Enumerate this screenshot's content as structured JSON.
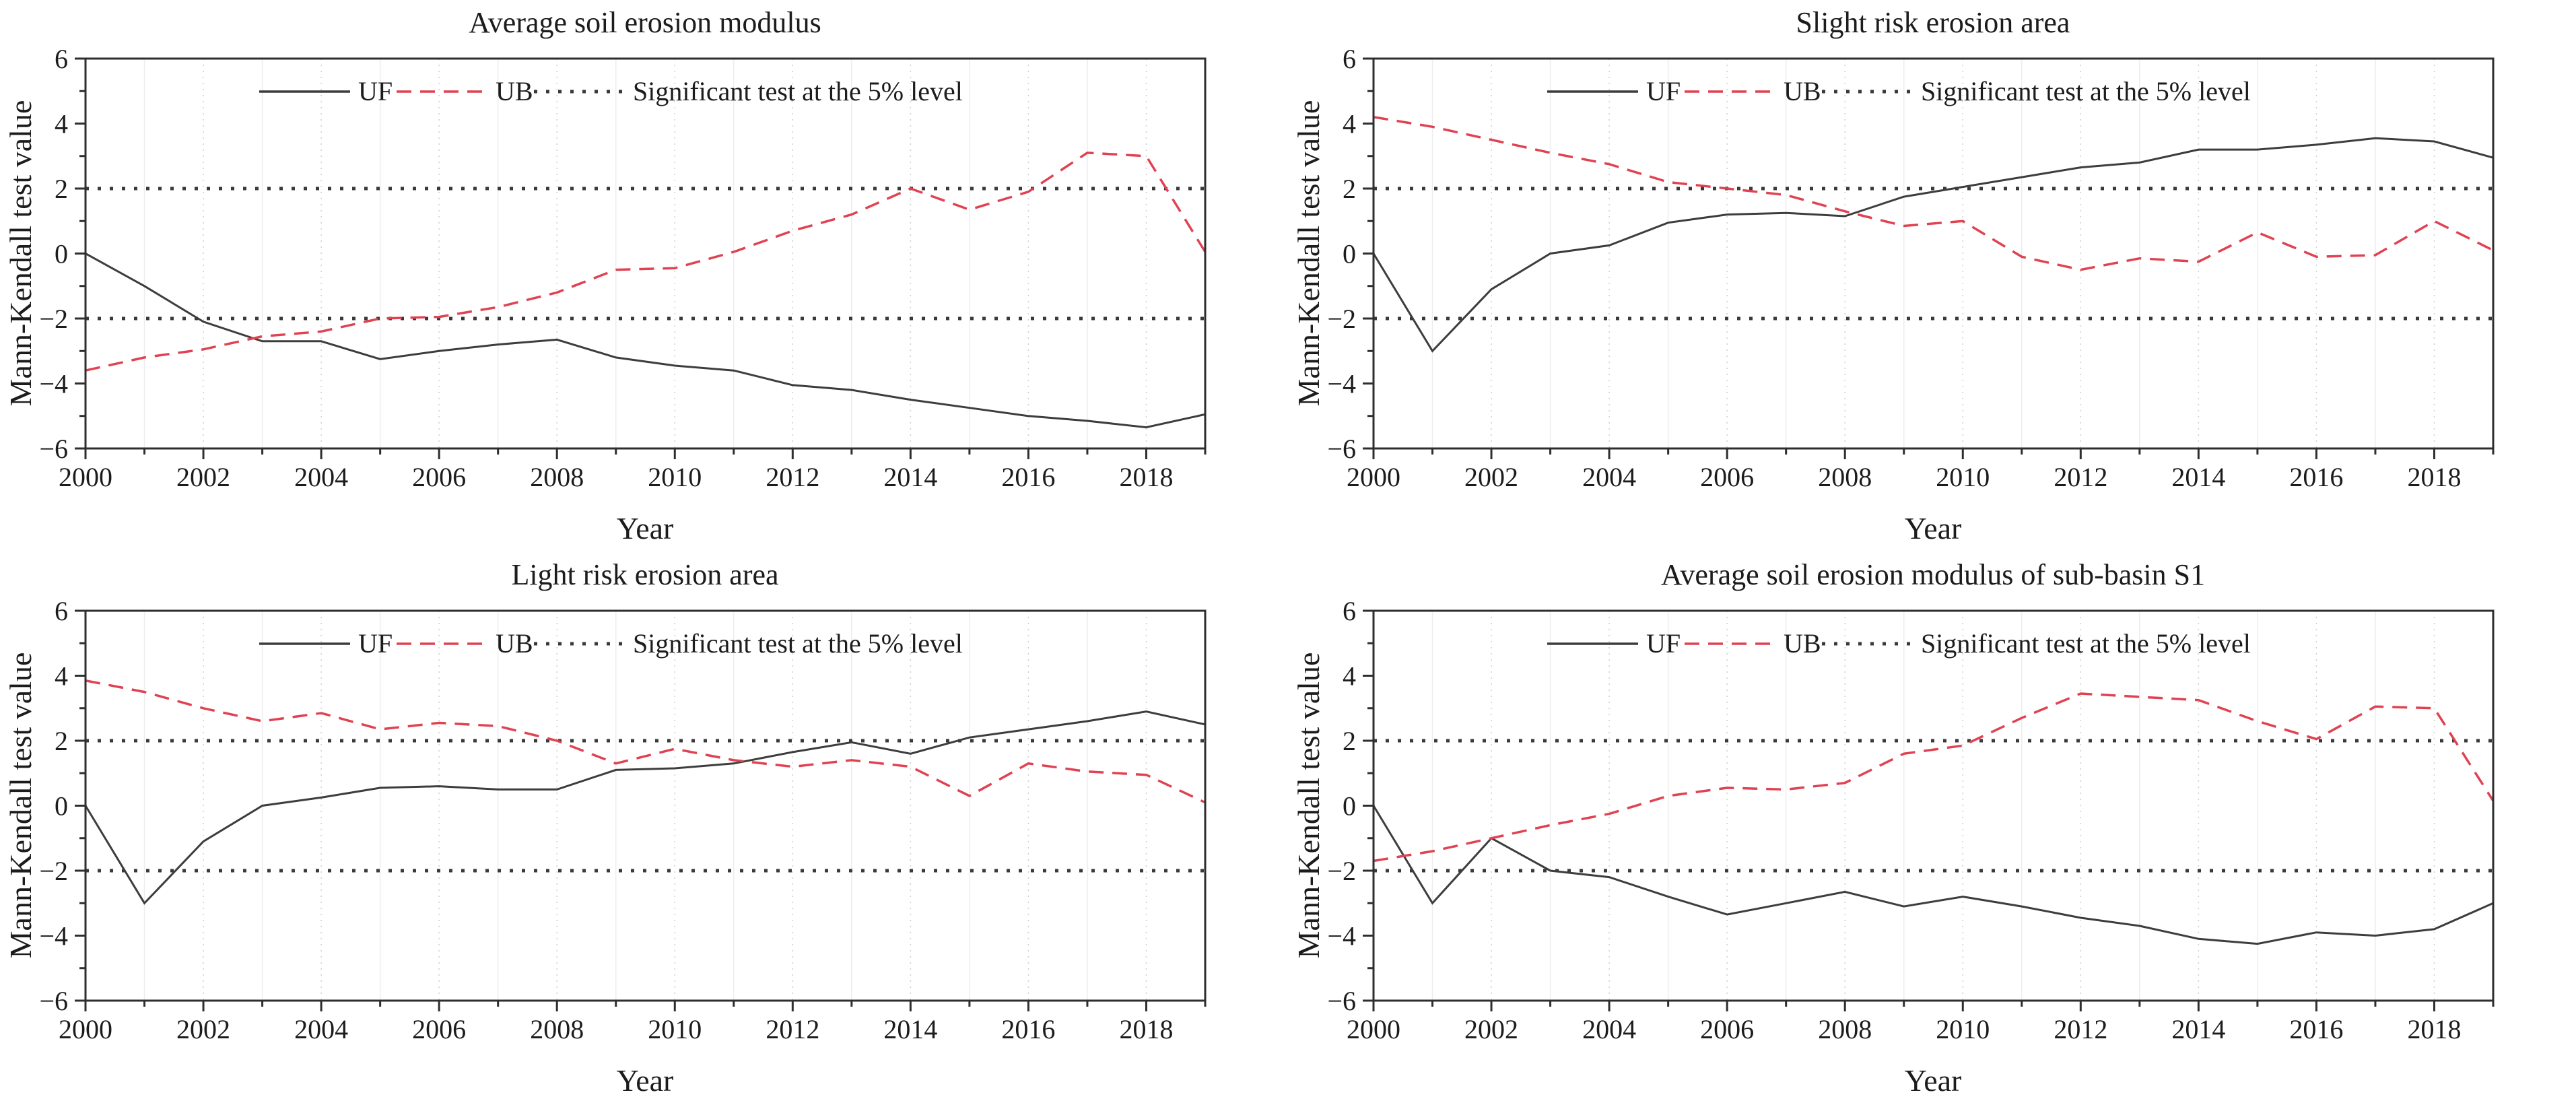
{
  "figure": {
    "background": "#ffffff",
    "colors": {
      "uf_line": "#3d3d3d",
      "ub_line": "#e04252",
      "significance_line": "#3a3a3a",
      "frame": "#2e2e2e",
      "grid_even_year": "#cfcfcf",
      "grid_odd_year": "#ededed",
      "text": "#1c1c1c"
    },
    "legend": {
      "uf_label": "UF",
      "ub_label": "UB",
      "sig_label": "Significant test at the 5% level"
    }
  },
  "chart_data": [
    {
      "type": "line",
      "title": "Average soil erosion modulus",
      "xlabel": "Year",
      "ylabel": "Mann-Kendall test value",
      "xlim": [
        2000,
        2019
      ],
      "ylim": [
        -6,
        6
      ],
      "xticks": [
        2000,
        2002,
        2004,
        2006,
        2008,
        2010,
        2012,
        2014,
        2016,
        2018
      ],
      "yticks": [
        -6,
        -4,
        -2,
        0,
        2,
        4,
        6
      ],
      "grid": "faint vertical gridlines at each year",
      "legend": [
        "UF",
        "UB",
        "Significant test at the 5% level"
      ],
      "legend_position": "top-center-inside",
      "significance_level_lines": [
        2,
        -2
      ],
      "x": [
        2000,
        2001,
        2002,
        2003,
        2004,
        2005,
        2006,
        2007,
        2008,
        2009,
        2010,
        2011,
        2012,
        2013,
        2014,
        2015,
        2016,
        2017,
        2018,
        2019
      ],
      "series": [
        {
          "name": "UF",
          "line_style": "solid",
          "color": "#3d3d3d",
          "values": [
            0.0,
            -1.0,
            -2.1,
            -2.7,
            -2.7,
            -3.25,
            -3.0,
            -2.8,
            -2.65,
            -3.2,
            -3.45,
            -3.6,
            -4.05,
            -4.2,
            -4.5,
            -4.75,
            -5.0,
            -5.15,
            -5.35,
            -4.95
          ]
        },
        {
          "name": "UB",
          "line_style": "dashed",
          "color": "#e04252",
          "values": [
            -3.6,
            -3.2,
            -2.95,
            -2.55,
            -2.4,
            -2.0,
            -1.95,
            -1.65,
            -1.2,
            -0.5,
            -0.45,
            0.05,
            0.7,
            1.2,
            2.0,
            1.35,
            1.9,
            3.1,
            3.0,
            0.05
          ]
        }
      ]
    },
    {
      "type": "line",
      "title": "Slight risk erosion area",
      "xlabel": "Year",
      "ylabel": "Mann-Kendall test value",
      "xlim": [
        2000,
        2019
      ],
      "ylim": [
        -6,
        6
      ],
      "xticks": [
        2000,
        2002,
        2004,
        2006,
        2008,
        2010,
        2012,
        2014,
        2016,
        2018
      ],
      "yticks": [
        -6,
        -4,
        -2,
        0,
        2,
        4,
        6
      ],
      "grid": "faint vertical gridlines at each year",
      "legend": [
        "UF",
        "UB",
        "Significant test at the 5% level"
      ],
      "legend_position": "top-center-inside",
      "significance_level_lines": [
        2,
        -2
      ],
      "x": [
        2000,
        2001,
        2002,
        2003,
        2004,
        2005,
        2006,
        2007,
        2008,
        2009,
        2010,
        2011,
        2012,
        2013,
        2014,
        2015,
        2016,
        2017,
        2018,
        2019
      ],
      "series": [
        {
          "name": "UF",
          "line_style": "solid",
          "color": "#3d3d3d",
          "values": [
            0.0,
            -3.0,
            -1.1,
            0.0,
            0.25,
            0.95,
            1.2,
            1.25,
            1.15,
            1.75,
            2.05,
            2.35,
            2.65,
            2.8,
            3.2,
            3.2,
            3.35,
            3.55,
            3.45,
            2.95
          ]
        },
        {
          "name": "UB",
          "line_style": "dashed",
          "color": "#e04252",
          "values": [
            4.2,
            3.9,
            3.5,
            3.1,
            2.75,
            2.2,
            2.0,
            1.8,
            1.3,
            0.85,
            1.0,
            -0.1,
            -0.5,
            -0.15,
            -0.25,
            0.65,
            -0.1,
            -0.05,
            1.0,
            0.1
          ]
        }
      ]
    },
    {
      "type": "line",
      "title": "Light risk erosion area",
      "xlabel": "Year",
      "ylabel": "Mann-Kendall test value",
      "xlim": [
        2000,
        2019
      ],
      "ylim": [
        -6,
        6
      ],
      "xticks": [
        2000,
        2002,
        2004,
        2006,
        2008,
        2010,
        2012,
        2014,
        2016,
        2018
      ],
      "yticks": [
        -6,
        -4,
        -2,
        0,
        2,
        4,
        6
      ],
      "grid": "faint vertical gridlines at each year",
      "legend": [
        "UF",
        "UB",
        "Significant test at the 5% level"
      ],
      "legend_position": "top-center-inside",
      "significance_level_lines": [
        2,
        -2
      ],
      "x": [
        2000,
        2001,
        2002,
        2003,
        2004,
        2005,
        2006,
        2007,
        2008,
        2009,
        2010,
        2011,
        2012,
        2013,
        2014,
        2015,
        2016,
        2017,
        2018,
        2019
      ],
      "series": [
        {
          "name": "UF",
          "line_style": "solid",
          "color": "#3d3d3d",
          "values": [
            0.0,
            -3.0,
            -1.1,
            0.0,
            0.25,
            0.55,
            0.6,
            0.5,
            0.5,
            1.1,
            1.15,
            1.3,
            1.65,
            1.95,
            1.6,
            2.1,
            2.35,
            2.6,
            2.9,
            2.5
          ]
        },
        {
          "name": "UB",
          "line_style": "dashed",
          "color": "#e04252",
          "values": [
            3.85,
            3.5,
            3.0,
            2.6,
            2.85,
            2.35,
            2.55,
            2.45,
            2.0,
            1.3,
            1.75,
            1.4,
            1.2,
            1.4,
            1.2,
            0.3,
            1.3,
            1.05,
            0.95,
            0.1
          ]
        }
      ]
    },
    {
      "type": "line",
      "title": "Average soil erosion modulus of sub-basin S1",
      "xlabel": "Year",
      "ylabel": "Mann-Kendall test value",
      "xlim": [
        2000,
        2019
      ],
      "ylim": [
        -6,
        6
      ],
      "xticks": [
        2000,
        2002,
        2004,
        2006,
        2008,
        2010,
        2012,
        2014,
        2016,
        2018
      ],
      "yticks": [
        -6,
        -4,
        -2,
        0,
        2,
        4,
        6
      ],
      "grid": "faint vertical gridlines at each year",
      "legend": [
        "UF",
        "UB",
        "Significant test at the 5% level"
      ],
      "legend_position": "top-center-inside",
      "significance_level_lines": [
        2,
        -2
      ],
      "x": [
        2000,
        2001,
        2002,
        2003,
        2004,
        2005,
        2006,
        2007,
        2008,
        2009,
        2010,
        2011,
        2012,
        2013,
        2014,
        2015,
        2016,
        2017,
        2018,
        2019
      ],
      "series": [
        {
          "name": "UF",
          "line_style": "solid",
          "color": "#3d3d3d",
          "values": [
            0.0,
            -3.0,
            -1.0,
            -2.0,
            -2.2,
            -2.8,
            -3.35,
            -3.0,
            -2.65,
            -3.1,
            -2.8,
            -3.1,
            -3.45,
            -3.7,
            -4.1,
            -4.25,
            -3.9,
            -4.0,
            -3.8,
            -3.0
          ]
        },
        {
          "name": "UB",
          "line_style": "dashed",
          "color": "#e04252",
          "values": [
            -1.7,
            -1.4,
            -1.0,
            -0.6,
            -0.25,
            0.3,
            0.55,
            0.5,
            0.7,
            1.6,
            1.85,
            2.7,
            3.45,
            3.35,
            3.25,
            2.6,
            2.05,
            3.05,
            3.0,
            0.15
          ]
        }
      ]
    }
  ]
}
